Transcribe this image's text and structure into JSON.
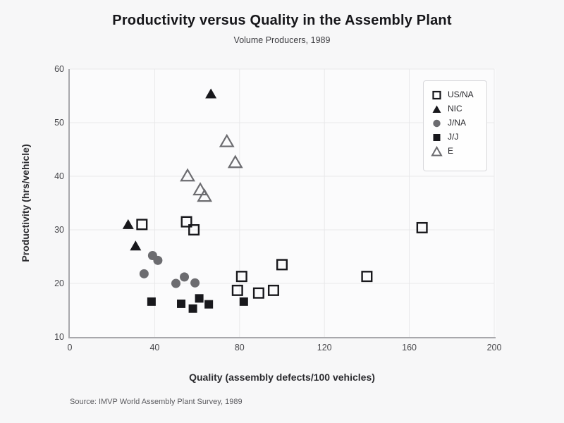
{
  "figure": {
    "title": "Productivity versus Quality in the Assembly Plant",
    "subtitle": "Volume Producers, 1989",
    "source": "Source: IMVP World Assembly Plant Survey, 1989"
  },
  "chart_data": {
    "type": "scatter",
    "title": "Productivity versus Quality in the Assembly Plant",
    "subtitle": "Volume Producers, 1989",
    "xlabel": "Quality (assembly defects/100 vehicles)",
    "ylabel": "Productivity (hrs/vehicle)",
    "xlim": [
      0,
      200
    ],
    "ylim": [
      10,
      60
    ],
    "x_ticks": [
      0,
      40,
      80,
      120,
      160,
      200
    ],
    "y_ticks": [
      10,
      20,
      30,
      40,
      50,
      60
    ],
    "grid": true,
    "legend_position": "upper right",
    "colors": {
      "dark": "#18181c",
      "gray": "#6c6c70",
      "grid": "#e8e8ea",
      "spine": "#a8a8ac"
    },
    "series": [
      {
        "name": "US/NA",
        "marker": "square-open",
        "color": "#18181c",
        "points": [
          [
            34,
            31
          ],
          [
            55,
            31.5
          ],
          [
            58.5,
            30
          ],
          [
            79,
            18.7
          ],
          [
            81,
            21.3
          ],
          [
            89,
            18.2
          ],
          [
            96,
            18.7
          ],
          [
            100,
            23.5
          ],
          [
            140,
            21.3
          ],
          [
            166,
            30.4
          ]
        ]
      },
      {
        "name": "NIC",
        "marker": "triangle-filled",
        "color": "#18181c",
        "points": [
          [
            27.5,
            31
          ],
          [
            31,
            27
          ],
          [
            66.5,
            55.4
          ]
        ]
      },
      {
        "name": "J/NA",
        "marker": "circle-filled",
        "color": "#6c6c70",
        "points": [
          [
            35,
            21.8
          ],
          [
            39,
            25.2
          ],
          [
            41.5,
            24.3
          ],
          [
            50,
            20
          ],
          [
            54,
            21.2
          ],
          [
            59,
            20.1
          ]
        ]
      },
      {
        "name": "J/J",
        "marker": "square-filled",
        "color": "#18181c",
        "points": [
          [
            38.5,
            16.6
          ],
          [
            52.5,
            16.2
          ],
          [
            58,
            15.3
          ],
          [
            61,
            17.2
          ],
          [
            65.5,
            16.1
          ],
          [
            82,
            16.6
          ]
        ]
      },
      {
        "name": "E",
        "marker": "triangle-open",
        "color": "#6c6c70",
        "points": [
          [
            55.5,
            40.1
          ],
          [
            61.5,
            37.5
          ],
          [
            63.5,
            36.3
          ],
          [
            74,
            46.5
          ],
          [
            78,
            42.6
          ]
        ]
      }
    ]
  }
}
